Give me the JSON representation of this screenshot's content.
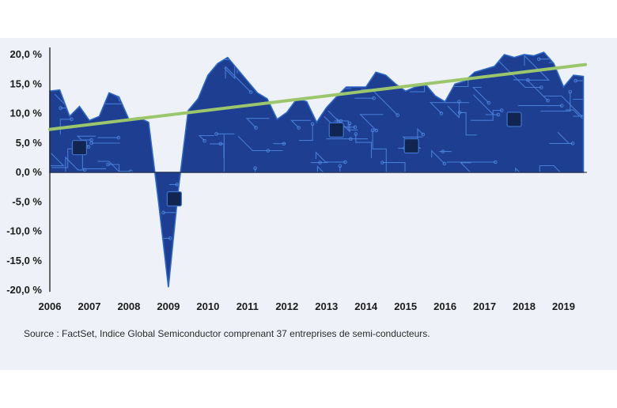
{
  "chart_data": {
    "type": "area",
    "x_tick_labels": [
      "2006",
      "2007",
      "2008",
      "2009",
      "2010",
      "2011",
      "2012",
      "2013",
      "2014",
      "2015",
      "2016",
      "2017",
      "2018",
      "2019"
    ],
    "y_tick_labels": [
      "20,0 %",
      "15,0 %",
      "10,0 %",
      "5,0 %",
      "0,0 %",
      "-5,0 %",
      "-10,0 %",
      "-15,0 %",
      "-20,0 %"
    ],
    "ylim": [
      -20,
      20
    ],
    "xlim": [
      2006,
      2019.55
    ],
    "series": [
      {
        "x": [
          2006.0,
          2006.25,
          2006.5,
          2006.75,
          2007.0,
          2007.25,
          2007.5,
          2007.75,
          2008.0,
          2008.25,
          2008.5,
          2008.75,
          2009.0,
          2009.25,
          2009.5,
          2009.75,
          2010.0,
          2010.25,
          2010.5,
          2010.75,
          2011.0,
          2011.25,
          2011.5,
          2011.75,
          2012.0,
          2012.25,
          2012.5,
          2012.75,
          2013.0,
          2013.25,
          2013.5,
          2013.75,
          2014.0,
          2014.25,
          2014.5,
          2014.75,
          2015.0,
          2015.25,
          2015.5,
          2015.75,
          2016.0,
          2016.25,
          2016.5,
          2016.75,
          2017.0,
          2017.25,
          2017.5,
          2017.75,
          2018.0,
          2018.25,
          2018.5,
          2018.75,
          2019.0,
          2019.25,
          2019.5
        ],
        "values": [
          13.8,
          14.0,
          9.5,
          11.2,
          8.8,
          9.5,
          13.5,
          12.8,
          9.0,
          9.3,
          8.5,
          -5.0,
          -19.5,
          -3.0,
          10.5,
          12.5,
          16.5,
          18.5,
          19.5,
          17.5,
          15.5,
          13.5,
          12.5,
          9.0,
          10.2,
          12.5,
          12.0,
          8.5,
          11.0,
          12.8,
          14.5,
          14.5,
          14.5,
          17.0,
          16.5,
          15.0,
          13.8,
          14.5,
          15.0,
          13.0,
          12.0,
          15.0,
          15.5,
          17.0,
          17.5,
          18.0,
          20.0,
          19.5,
          20.0,
          19.8,
          20.4,
          18.5,
          14.5,
          16.5,
          16.3
        ]
      }
    ],
    "trend": {
      "x": [
        2006.0,
        2019.55
      ],
      "values": [
        7.3,
        18.3
      ]
    },
    "grid": false,
    "colors": {
      "area": "#1e3f91",
      "area_edge": "#2a66c7",
      "trace": "#4d86e0",
      "trend": "#9cc66b",
      "axis": "#1b1b1b"
    }
  },
  "source_text": "Source : FactSet, Indice Global Semiconductor comprenant 37 entreprises de semi-conducteurs."
}
